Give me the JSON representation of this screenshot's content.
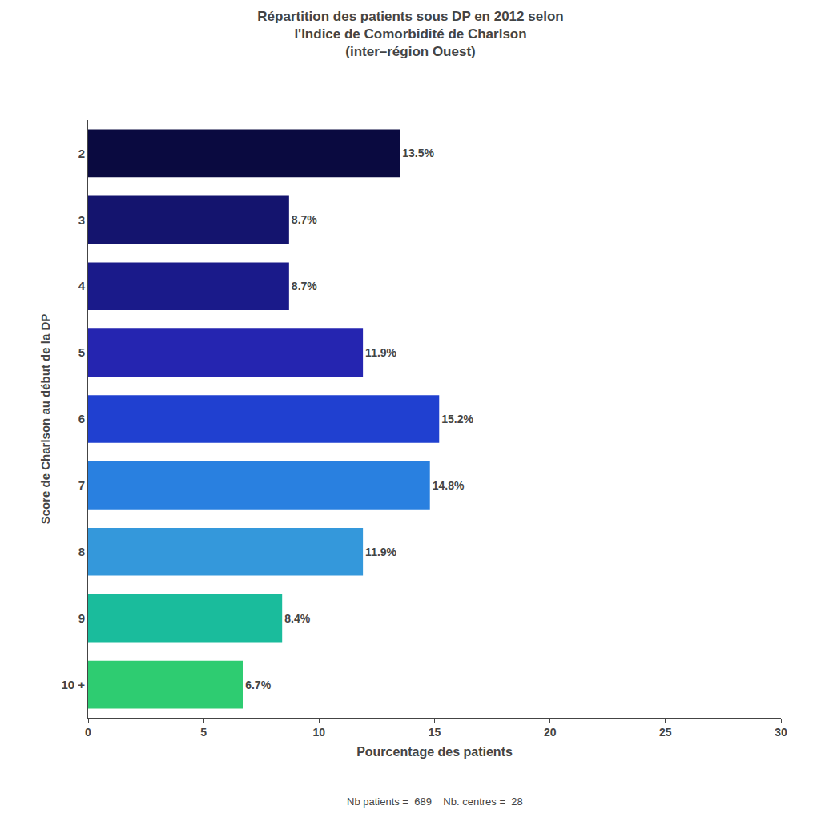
{
  "chart_data": {
    "type": "bar",
    "orientation": "horizontal",
    "title": "Répartition des patients sous DP en 2012 selon\nl'Indice de Comorbidité de Charlson\n(inter–région Ouest)",
    "subtitle": "Nb patients =  689    Nb. centres =  28",
    "xlabel": "Pourcentage des patients",
    "ylabel": "Score de Charlson au début de la DP",
    "categories": [
      "10 +",
      "9",
      "8",
      "7",
      "6",
      "5",
      "4",
      "3",
      "2"
    ],
    "values": [
      6.7,
      8.4,
      11.9,
      14.8,
      15.2,
      11.9,
      8.7,
      8.7,
      13.5
    ],
    "value_labels": [
      "6.7%",
      "8.4%",
      "11.9%",
      "14.8%",
      "15.2%",
      "11.9%",
      "8.7%",
      "8.7%",
      "13.5%"
    ],
    "colors": [
      "#2ecc71",
      "#1abc9c",
      "#3498db",
      "#2980e0",
      "#2040d0",
      "#2525b0",
      "#1a1a8a",
      "#14146e",
      "#0a0a40"
    ],
    "xlim": [
      0,
      30
    ],
    "xticks": [
      0,
      5,
      10,
      15,
      20,
      25,
      30
    ],
    "data_labels": true,
    "grid": false
  }
}
